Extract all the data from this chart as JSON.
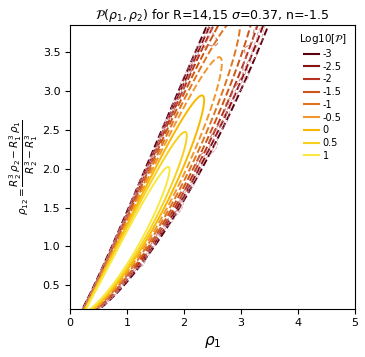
{
  "title": "$\\mathcal{P}(\\rho_1,\\rho_2)$ for R=14,15 $\\sigma$=0.37, n=-1.5",
  "xlabel": "$\\rho_1$",
  "ylabel": "$\\rho_{12}=\\dfrac{R_2^3\\,\\rho_2 - R_1^3\\,\\rho_1}{R_2^3 - R_1^3}$",
  "xlim": [
    0,
    5
  ],
  "ylim": [
    0.2,
    3.85
  ],
  "R1": 14,
  "R2": 15,
  "sigma": 0.37,
  "n": -1.5,
  "legend_title": "Log10[$\\mathcal{P}$]",
  "levels": [
    -3,
    -2.5,
    -2,
    -1.5,
    -1,
    -0.5,
    0,
    0.5,
    1
  ],
  "level_labels": [
    "-3",
    "-2.5",
    "-2",
    "-1.5",
    "-1",
    "-0.5",
    "0",
    "0.5",
    "1"
  ],
  "colors": [
    "#5a0010",
    "#8b1010",
    "#b83020",
    "#cc5515",
    "#e07520",
    "#f09830",
    "#f8b800",
    "#f8d020",
    "#f8e840"
  ],
  "sim_color_outer": "#d090a0",
  "sim_color_inner": "#c07060",
  "bg_color": "#ffffff"
}
